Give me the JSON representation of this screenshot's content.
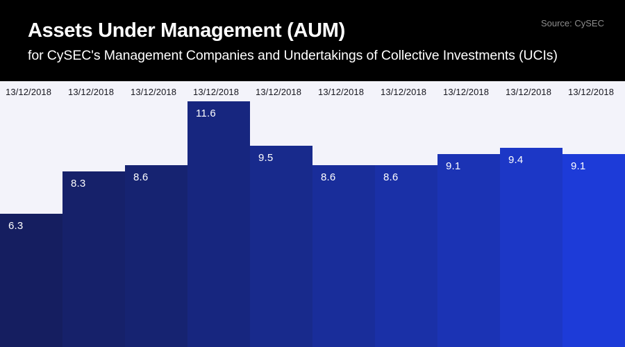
{
  "header": {
    "title": "Assets Under Management (AUM)",
    "subtitle": "for CySEC's Management Companies and Undertakings of Collective Investments (UCIs)",
    "source": "Source: CySEC"
  },
  "colors": {
    "header_bg": "#000000",
    "chart_bg": "#f3f3fa",
    "title_text": "#ffffff",
    "source_text": "#8e8e8e",
    "date_label_text": "#16161e",
    "value_label_text": "#ffffff"
  },
  "chart_data": {
    "type": "bar",
    "title": "Assets Under Management (AUM)",
    "subtitle": "for CySEC's Management Companies and Undertakings of Collective Investments (UCIs)",
    "source": "Source: CySEC",
    "categories": [
      "13/12/2018",
      "13/12/2018",
      "13/12/2018",
      "13/12/2018",
      "13/12/2018",
      "13/12/2018",
      "13/12/2018",
      "13/12/2018",
      "13/12/2018",
      "13/12/2018"
    ],
    "values": [
      6.3,
      8.3,
      8.6,
      11.6,
      9.5,
      8.6,
      8.6,
      9.1,
      9.4,
      9.1
    ],
    "bar_colors": [
      "#151E60",
      "#16216A",
      "#162371",
      "#17267F",
      "#182A8C",
      "#192D9A",
      "#1A30A7",
      "#1B33B4",
      "#1C37C6",
      "#1D3BD8"
    ],
    "xlabel": "",
    "ylabel": "",
    "ylim": [
      0,
      12.55
    ],
    "grid": false,
    "legend": false,
    "value_labels": "inside-top-left",
    "category_labels": "top-left-of-column"
  }
}
